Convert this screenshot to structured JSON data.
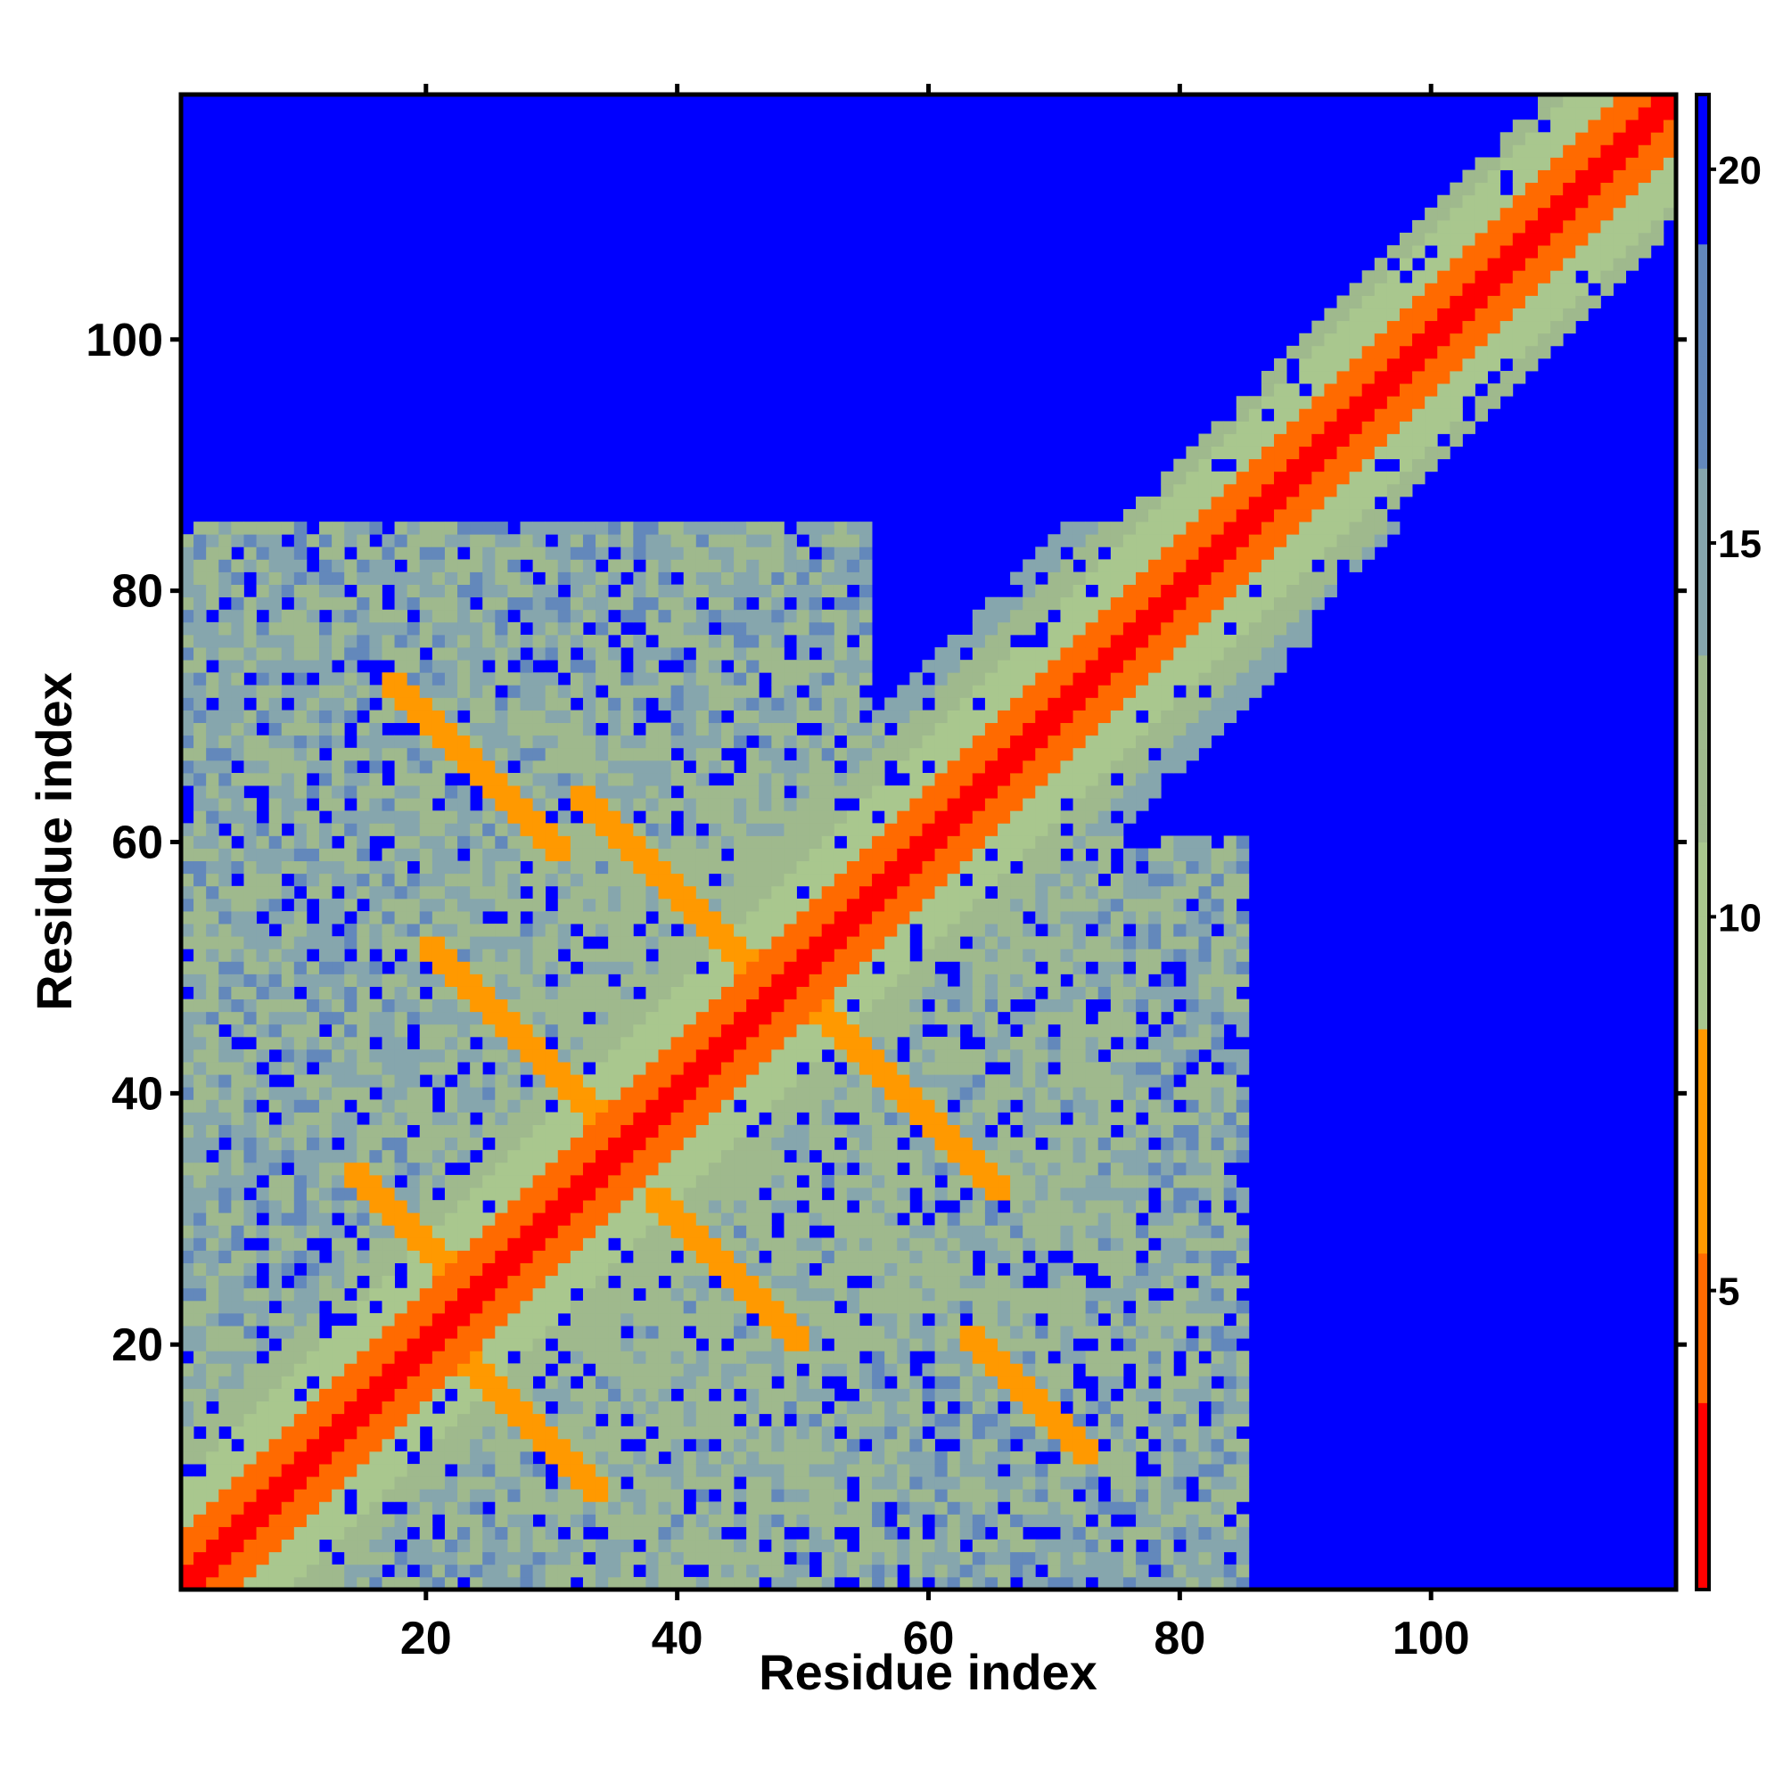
{
  "chart_data": {
    "type": "heatmap",
    "title": "",
    "xlabel": "Residue index",
    "ylabel": "Residue index",
    "n_residues": 119,
    "x_range": [
      1,
      119
    ],
    "y_range": [
      1,
      119
    ],
    "x_ticks": [
      20,
      40,
      60,
      80,
      100
    ],
    "y_ticks": [
      20,
      40,
      60,
      80,
      100
    ],
    "colorbar": {
      "range": [
        1,
        21
      ],
      "ticks": [
        5,
        10,
        15,
        20
      ],
      "colors": [
        {
          "value": 1,
          "color": "#ff0000"
        },
        {
          "value": 4,
          "color": "#ff2a00"
        },
        {
          "value": 6,
          "color": "#ff8000"
        },
        {
          "value": 8.5,
          "color": "#ffa500"
        },
        {
          "value": 8.6,
          "color": "#a8c890"
        },
        {
          "value": 12,
          "color": "#9fbe8a"
        },
        {
          "value": 16,
          "color": "#7da0b0"
        },
        {
          "value": 19,
          "color": "#5a82b8"
        },
        {
          "value": 21,
          "color": "#0000ff"
        }
      ]
    },
    "background_value": 21,
    "structure": {
      "diagonal": "low distance (~1-4) along the main diagonal from residue 1 to 119",
      "antiparallel_contacts": [
        {
          "center": [
            24,
            66
          ],
          "span": 7,
          "value": 6
        },
        {
          "center": [
            40,
            56
          ],
          "span": 8,
          "value": 6
        },
        {
          "center": [
            28,
            44
          ],
          "span": 8,
          "value": 6
        },
        {
          "center": [
            58,
            40
          ],
          "span": 8,
          "value": 6
        },
        {
          "center": [
            20,
            28
          ],
          "span": 6,
          "value": 6
        },
        {
          "center": [
            28,
            14
          ],
          "span": 6,
          "value": 6
        },
        {
          "center": [
            44,
            26
          ],
          "span": 6,
          "value": 6
        },
        {
          "center": [
            68,
            16
          ],
          "span": 5,
          "value": 6
        }
      ],
      "halo_regions": [
        {
          "x": [
            1,
            55
          ],
          "y": [
            1,
            85
          ],
          "value": 13
        },
        {
          "x": [
            30,
            85
          ],
          "y": [
            1,
            60
          ],
          "value": 13
        },
        {
          "x": [
            20,
            75
          ],
          "y": [
            20,
            70
          ],
          "value": 14
        }
      ]
    }
  }
}
